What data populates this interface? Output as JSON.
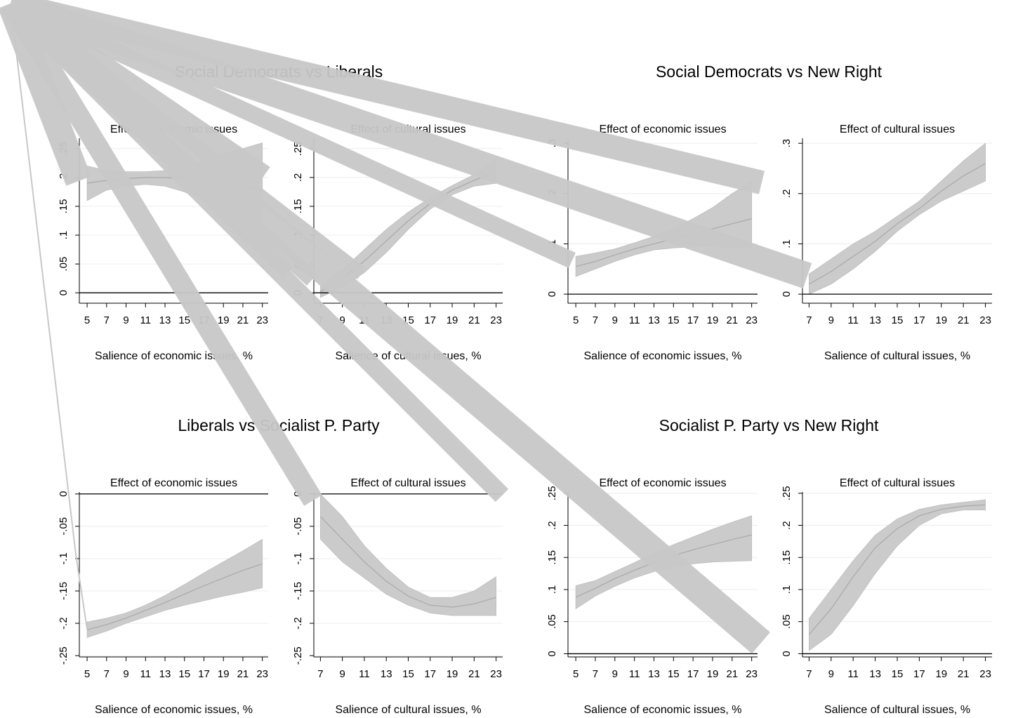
{
  "figure": {
    "sections": [
      {
        "title": "Social Democrats vs Liberals"
      },
      {
        "title": "Social Democrats vs New Right"
      },
      {
        "title": "Liberals vs Socialist P. Party"
      },
      {
        "title": "Socialist P. Party vs New Right"
      }
    ],
    "overlay": {
      "apex": "top-left corner",
      "fan_strokes": 12,
      "color": "#c8c8c8"
    }
  },
  "chart_data": [
    {
      "type": "area",
      "title": "Effect of economic issues",
      "section": 0,
      "xlabel": "Salience of economic issues, %",
      "xticks": [
        5,
        7,
        9,
        11,
        13,
        15,
        17,
        19,
        21,
        23
      ],
      "xlim": [
        4.2,
        23.6
      ],
      "yticks": [
        0,
        0.05,
        0.1,
        0.15,
        0.2,
        0.25
      ],
      "ytick_labels": [
        "0",
        ".05",
        ".1",
        ".15",
        ".2",
        ".25"
      ],
      "ylim": [
        -0.018,
        0.268
      ],
      "x": [
        5,
        7,
        9,
        11,
        13,
        15,
        17,
        19,
        21,
        23
      ],
      "series": [
        {
          "mean": [
            0.19,
            0.195,
            0.198,
            0.2,
            0.2,
            0.198,
            0.195,
            0.19,
            0.185,
            0.18
          ],
          "lower": [
            0.16,
            0.178,
            0.185,
            0.188,
            0.185,
            0.175,
            0.16,
            0.14,
            0.12,
            0.1
          ],
          "upper": [
            0.22,
            0.212,
            0.21,
            0.21,
            0.212,
            0.218,
            0.228,
            0.24,
            0.25,
            0.26
          ]
        }
      ]
    },
    {
      "type": "area",
      "title": "Effect of cultural issues",
      "section": 0,
      "xlabel": "Salience of cultural issues, %",
      "xticks": [
        7,
        9,
        11,
        13,
        15,
        17,
        19,
        21,
        23
      ],
      "xlim": [
        6.4,
        23.6
      ],
      "yticks": [
        0,
        0.05,
        0.1,
        0.15,
        0.2,
        0.25
      ],
      "ytick_labels": [
        "0",
        ".05",
        ".1",
        ".15",
        ".2",
        ".25"
      ],
      "ylim": [
        -0.018,
        0.268
      ],
      "x": [
        7,
        9,
        11,
        13,
        15,
        17,
        19,
        21,
        23
      ],
      "series": [
        {
          "mean": [
            0.002,
            0.025,
            0.055,
            0.09,
            0.125,
            0.155,
            0.178,
            0.195,
            0.21
          ],
          "lower": [
            -0.008,
            0.01,
            0.035,
            0.07,
            0.11,
            0.145,
            0.17,
            0.185,
            0.19
          ],
          "upper": [
            0.012,
            0.04,
            0.075,
            0.11,
            0.14,
            0.165,
            0.186,
            0.205,
            0.23
          ]
        }
      ]
    },
    {
      "type": "area",
      "title": "Effect of economic issues",
      "section": 1,
      "xlabel": "Salience of economic issues, %",
      "xticks": [
        5,
        7,
        9,
        11,
        13,
        15,
        17,
        19,
        21,
        23
      ],
      "xlim": [
        4.2,
        23.6
      ],
      "yticks": [
        0,
        0.1,
        0.2,
        0.3
      ],
      "ytick_labels": [
        "0",
        ".1",
        ".2",
        ".3"
      ],
      "ylim": [
        -0.018,
        0.31
      ],
      "x": [
        5,
        7,
        9,
        11,
        13,
        15,
        17,
        19,
        21,
        23
      ],
      "series": [
        {
          "mean": [
            0.055,
            0.065,
            0.078,
            0.09,
            0.1,
            0.11,
            0.12,
            0.13,
            0.14,
            0.15
          ],
          "lower": [
            0.035,
            0.05,
            0.065,
            0.078,
            0.088,
            0.092,
            0.094,
            0.094,
            0.093,
            0.092
          ],
          "upper": [
            0.075,
            0.082,
            0.09,
            0.102,
            0.115,
            0.13,
            0.15,
            0.172,
            0.2,
            0.225
          ]
        }
      ]
    },
    {
      "type": "area",
      "title": "Effect of cultural issues",
      "section": 1,
      "xlabel": "Salience of cultural issues, %",
      "xticks": [
        7,
        9,
        11,
        13,
        15,
        17,
        19,
        21,
        23
      ],
      "xlim": [
        6.4,
        23.6
      ],
      "yticks": [
        0,
        0.1,
        0.2,
        0.3
      ],
      "ytick_labels": [
        "0",
        ".1",
        ".2",
        ".3"
      ],
      "ylim": [
        -0.018,
        0.31
      ],
      "x": [
        7,
        9,
        11,
        13,
        15,
        17,
        19,
        21,
        23
      ],
      "series": [
        {
          "mean": [
            0.02,
            0.045,
            0.075,
            0.105,
            0.14,
            0.17,
            0.205,
            0.235,
            0.26
          ],
          "lower": [
            0.0,
            0.02,
            0.05,
            0.085,
            0.125,
            0.158,
            0.185,
            0.205,
            0.225
          ],
          "upper": [
            0.04,
            0.07,
            0.1,
            0.125,
            0.155,
            0.185,
            0.225,
            0.265,
            0.3
          ]
        }
      ]
    },
    {
      "type": "area",
      "title": "Effect of economic issues",
      "section": 2,
      "xlabel": "Salience of economic issues, %",
      "xticks": [
        5,
        7,
        9,
        11,
        13,
        15,
        17,
        19,
        21,
        23
      ],
      "xlim": [
        4.2,
        23.6
      ],
      "yticks": [
        0,
        -0.05,
        -0.1,
        -0.15,
        -0.2,
        -0.25
      ],
      "ytick_labels": [
        "0",
        "-.05",
        "-.1",
        "-.15",
        "-.2",
        "-.25"
      ],
      "ylim": [
        -0.252,
        0.003
      ],
      "x": [
        5,
        7,
        9,
        11,
        13,
        15,
        17,
        19,
        21,
        23
      ],
      "series": [
        {
          "mean": [
            -0.21,
            -0.202,
            -0.192,
            -0.18,
            -0.168,
            -0.155,
            -0.142,
            -0.13,
            -0.118,
            -0.108
          ],
          "lower": [
            -0.222,
            -0.212,
            -0.2,
            -0.19,
            -0.18,
            -0.172,
            -0.165,
            -0.158,
            -0.152,
            -0.145
          ],
          "upper": [
            -0.198,
            -0.192,
            -0.184,
            -0.172,
            -0.157,
            -0.14,
            -0.122,
            -0.105,
            -0.088,
            -0.07
          ]
        }
      ]
    },
    {
      "type": "area",
      "title": "Effect of cultural issues",
      "section": 2,
      "xlabel": "Salience of cultural issues, %",
      "xticks": [
        7,
        9,
        11,
        13,
        15,
        17,
        19,
        21,
        23
      ],
      "xlim": [
        6.4,
        23.6
      ],
      "yticks": [
        0,
        -0.05,
        -0.1,
        -0.15,
        -0.2,
        -0.25
      ],
      "ytick_labels": [
        "0",
        "-.05",
        "-.1",
        "-.15",
        "-.2",
        "-.25"
      ],
      "ylim": [
        -0.252,
        0.003
      ],
      "x": [
        7,
        9,
        11,
        13,
        15,
        17,
        19,
        21,
        23
      ],
      "series": [
        {
          "mean": [
            -0.035,
            -0.07,
            -0.105,
            -0.135,
            -0.158,
            -0.172,
            -0.175,
            -0.17,
            -0.16
          ],
          "lower": [
            -0.07,
            -0.105,
            -0.13,
            -0.155,
            -0.172,
            -0.184,
            -0.188,
            -0.188,
            -0.188
          ],
          "upper": [
            0.0,
            -0.035,
            -0.08,
            -0.115,
            -0.144,
            -0.16,
            -0.16,
            -0.15,
            -0.128
          ]
        }
      ]
    },
    {
      "type": "area",
      "title": "Effect of economic issues",
      "section": 3,
      "xlabel": "Salience of economic issues, %",
      "xticks": [
        5,
        7,
        9,
        11,
        13,
        15,
        17,
        19,
        21,
        23
      ],
      "xlim": [
        4.2,
        23.6
      ],
      "yticks": [
        0,
        0.05,
        0.1,
        0.15,
        0.2,
        0.25
      ],
      "ytick_labels": [
        "0",
        ".05",
        ".1",
        ".15",
        ".2",
        ".25"
      ],
      "ylim": [
        -0.005,
        0.252
      ],
      "x": [
        5,
        7,
        9,
        11,
        13,
        15,
        17,
        19,
        21,
        23
      ],
      "series": [
        {
          "mean": [
            0.088,
            0.102,
            0.117,
            0.13,
            0.142,
            0.153,
            0.162,
            0.17,
            0.178,
            0.185
          ],
          "lower": [
            0.07,
            0.09,
            0.105,
            0.118,
            0.128,
            0.135,
            0.14,
            0.143,
            0.144,
            0.145
          ],
          "upper": [
            0.106,
            0.114,
            0.128,
            0.142,
            0.157,
            0.17,
            0.182,
            0.194,
            0.205,
            0.215
          ]
        }
      ]
    },
    {
      "type": "area",
      "title": "Effect of cultural issues",
      "section": 3,
      "xlabel": "Salience of cultural issues, %",
      "xticks": [
        7,
        9,
        11,
        13,
        15,
        17,
        19,
        21,
        23
      ],
      "xlim": [
        6.4,
        23.6
      ],
      "yticks": [
        0,
        0.05,
        0.1,
        0.15,
        0.2,
        0.25
      ],
      "ytick_labels": [
        "0",
        ".05",
        ".1",
        ".15",
        ".2",
        ".25"
      ],
      "ylim": [
        -0.005,
        0.252
      ],
      "x": [
        7,
        9,
        11,
        13,
        15,
        17,
        19,
        21,
        23
      ],
      "series": [
        {
          "mean": [
            0.03,
            0.07,
            0.12,
            0.165,
            0.195,
            0.215,
            0.225,
            0.23,
            0.232
          ],
          "lower": [
            0.005,
            0.03,
            0.075,
            0.125,
            0.168,
            0.2,
            0.218,
            0.224,
            0.224
          ],
          "upper": [
            0.055,
            0.1,
            0.145,
            0.185,
            0.21,
            0.225,
            0.232,
            0.236,
            0.24
          ]
        }
      ]
    }
  ]
}
